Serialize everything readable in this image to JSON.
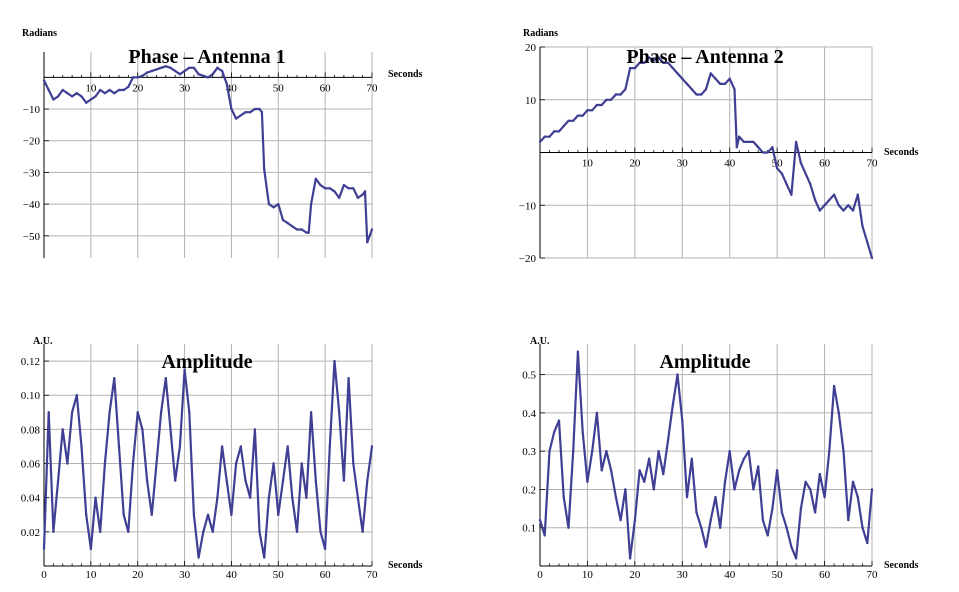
{
  "chart_data": [
    {
      "type": "line",
      "title": "Phase – Antenna 1",
      "xlabel": "Seconds",
      "ylabel": "Radians",
      "xlim": [
        0,
        70
      ],
      "ylim": [
        -57,
        8
      ],
      "x_ticks": [
        10,
        20,
        30,
        40,
        50,
        60,
        70
      ],
      "y_ticks": [
        -10,
        -20,
        -30,
        -40,
        -50
      ],
      "x_tick_labels": [
        "10",
        "20",
        "30",
        "40",
        "50",
        "60",
        "70"
      ],
      "y_tick_labels": [
        "−10",
        "−20",
        "−30",
        "−40",
        "−50"
      ],
      "grid": true,
      "color": "#3f3f94",
      "x": [
        0,
        1,
        2,
        3,
        4,
        5,
        6,
        7,
        8,
        9,
        10,
        11,
        12,
        13,
        14,
        15,
        16,
        17,
        18,
        19,
        20,
        21,
        22,
        23,
        24,
        25,
        26,
        27,
        28,
        29,
        30,
        31,
        32,
        33,
        34,
        35,
        36,
        37,
        38,
        39,
        40,
        41,
        42,
        43,
        44,
        45,
        46,
        46.5,
        47,
        48,
        49,
        50,
        51,
        52,
        53,
        54,
        55,
        56,
        56.5,
        57,
        58,
        59,
        60,
        61,
        62,
        63,
        64,
        65,
        66,
        67,
        68,
        68.5,
        69,
        70
      ],
      "y": [
        -1,
        -4,
        -7,
        -6,
        -4,
        -5,
        -6,
        -5,
        -6,
        -8,
        -7,
        -6,
        -4,
        -5,
        -4,
        -5,
        -4,
        -4,
        -3,
        0,
        0,
        0.5,
        1.5,
        2,
        2.5,
        3,
        3.5,
        3,
        2,
        1,
        2,
        3,
        3,
        1,
        0.5,
        0,
        1,
        3,
        2,
        -2,
        -10,
        -13,
        -12,
        -11,
        -11,
        -10,
        -10,
        -11,
        -29,
        -40,
        -41,
        -40,
        -45,
        -46,
        -47,
        -48,
        -48,
        -49,
        -49,
        -40,
        -32,
        -34,
        -35,
        -35,
        -36,
        -38,
        -34,
        -35,
        -35,
        -38,
        -37,
        -36,
        -52,
        -48
      ]
    },
    {
      "type": "line",
      "title": "Phase – Antenna 2",
      "xlabel": "Seconds",
      "ylabel": "Radians",
      "xlim": [
        0,
        70
      ],
      "ylim": [
        -20,
        20
      ],
      "x_ticks": [
        10,
        20,
        30,
        40,
        50,
        60,
        70
      ],
      "y_ticks": [
        20,
        10,
        -10,
        -20
      ],
      "x_tick_labels": [
        "10",
        "20",
        "30",
        "40",
        "50",
        "60",
        "70"
      ],
      "y_tick_labels": [
        "20",
        "10",
        "−10",
        "−20"
      ],
      "grid": true,
      "color": "#3f3f94",
      "x": [
        0,
        1,
        2,
        3,
        4,
        5,
        6,
        7,
        8,
        9,
        10,
        11,
        12,
        13,
        14,
        15,
        16,
        17,
        18,
        19,
        20,
        21,
        22,
        23,
        24,
        25,
        26,
        27,
        28,
        29,
        30,
        31,
        32,
        33,
        34,
        35,
        36,
        37,
        38,
        39,
        40,
        41,
        41.5,
        42,
        43,
        44,
        45,
        46,
        47,
        48,
        49,
        50,
        51,
        52,
        53,
        54,
        55,
        56,
        57,
        58,
        59,
        60,
        61,
        62,
        63,
        64,
        65,
        66,
        67,
        68,
        69,
        70
      ],
      "y": [
        2,
        3,
        3,
        4,
        4,
        5,
        6,
        6,
        7,
        7,
        8,
        8,
        9,
        9,
        10,
        10,
        11,
        11,
        12,
        16,
        16,
        17,
        17,
        18,
        17.5,
        18,
        17,
        17,
        16,
        15,
        14,
        13,
        12,
        11,
        11,
        12,
        15,
        14,
        13,
        13,
        14,
        12,
        1,
        3,
        2,
        2,
        2,
        1,
        0,
        0,
        1,
        -3,
        -4,
        -6,
        -8,
        2,
        -2,
        -4,
        -6,
        -9,
        -11,
        -10,
        -9,
        -8,
        -10,
        -11,
        -10,
        -11,
        -8,
        -14,
        -17,
        -20
      ]
    },
    {
      "type": "line",
      "title": "Amplitude",
      "xlabel": "Seconds",
      "ylabel": "A.U.",
      "xlim": [
        0,
        70
      ],
      "ylim": [
        0,
        0.13
      ],
      "x_ticks": [
        0,
        10,
        20,
        30,
        40,
        50,
        60,
        70
      ],
      "y_ticks": [
        0.02,
        0.04,
        0.06,
        0.08,
        0.1,
        0.12
      ],
      "x_tick_labels": [
        "0",
        "10",
        "20",
        "30",
        "40",
        "50",
        "60",
        "70"
      ],
      "y_tick_labels": [
        "0.02",
        "0.04",
        "0.06",
        "0.08",
        "0.10",
        "0.12"
      ],
      "grid": true,
      "color": "#3f3f94",
      "x": [
        0,
        1,
        2,
        3,
        4,
        5,
        6,
        7,
        8,
        9,
        10,
        11,
        12,
        13,
        14,
        15,
        16,
        17,
        18,
        19,
        20,
        21,
        22,
        23,
        24,
        25,
        26,
        27,
        28,
        29,
        30,
        31,
        32,
        33,
        34,
        35,
        36,
        37,
        38,
        39,
        40,
        41,
        42,
        43,
        44,
        45,
        46,
        47,
        48,
        49,
        50,
        51,
        52,
        53,
        54,
        55,
        56,
        57,
        58,
        59,
        60,
        61,
        62,
        63,
        64,
        65,
        66,
        67,
        68,
        69,
        70
      ],
      "y": [
        0.01,
        0.09,
        0.02,
        0.05,
        0.08,
        0.06,
        0.09,
        0.1,
        0.07,
        0.03,
        0.01,
        0.04,
        0.02,
        0.06,
        0.09,
        0.11,
        0.07,
        0.03,
        0.02,
        0.06,
        0.09,
        0.08,
        0.05,
        0.03,
        0.06,
        0.09,
        0.11,
        0.08,
        0.05,
        0.07,
        0.115,
        0.09,
        0.03,
        0.005,
        0.02,
        0.03,
        0.02,
        0.04,
        0.07,
        0.05,
        0.03,
        0.06,
        0.07,
        0.05,
        0.04,
        0.08,
        0.02,
        0.005,
        0.04,
        0.06,
        0.03,
        0.05,
        0.07,
        0.04,
        0.02,
        0.06,
        0.04,
        0.09,
        0.05,
        0.02,
        0.01,
        0.07,
        0.12,
        0.09,
        0.05,
        0.11,
        0.06,
        0.04,
        0.02,
        0.05,
        0.07
      ]
    },
    {
      "type": "line",
      "title": "Amplitude",
      "xlabel": "Seconds",
      "ylabel": "A.U.",
      "xlim": [
        0,
        70
      ],
      "ylim": [
        0,
        0.58
      ],
      "x_ticks": [
        0,
        10,
        20,
        30,
        40,
        50,
        60,
        70
      ],
      "y_ticks": [
        0.1,
        0.2,
        0.3,
        0.4,
        0.5
      ],
      "x_tick_labels": [
        "0",
        "10",
        "20",
        "30",
        "40",
        "50",
        "60",
        "70"
      ],
      "y_tick_labels": [
        "0.1",
        "0.2",
        "0.3",
        "0.4",
        "0.5"
      ],
      "grid": true,
      "color": "#3f3f94",
      "x": [
        0,
        1,
        2,
        3,
        4,
        5,
        6,
        7,
        8,
        9,
        10,
        11,
        12,
        13,
        14,
        15,
        16,
        17,
        18,
        19,
        20,
        21,
        22,
        23,
        24,
        25,
        26,
        27,
        28,
        29,
        30,
        31,
        32,
        33,
        34,
        35,
        36,
        37,
        38,
        39,
        40,
        41,
        42,
        43,
        44,
        45,
        46,
        47,
        48,
        49,
        50,
        51,
        52,
        53,
        54,
        55,
        56,
        57,
        58,
        59,
        60,
        61,
        62,
        63,
        64,
        65,
        66,
        67,
        68,
        69,
        70
      ],
      "y": [
        0.12,
        0.08,
        0.3,
        0.35,
        0.38,
        0.18,
        0.1,
        0.3,
        0.56,
        0.35,
        0.22,
        0.3,
        0.4,
        0.25,
        0.3,
        0.25,
        0.18,
        0.12,
        0.2,
        0.02,
        0.12,
        0.25,
        0.22,
        0.28,
        0.2,
        0.3,
        0.24,
        0.33,
        0.42,
        0.5,
        0.38,
        0.18,
        0.28,
        0.14,
        0.1,
        0.05,
        0.12,
        0.18,
        0.1,
        0.22,
        0.3,
        0.2,
        0.25,
        0.28,
        0.3,
        0.2,
        0.26,
        0.12,
        0.08,
        0.15,
        0.25,
        0.14,
        0.1,
        0.05,
        0.02,
        0.15,
        0.22,
        0.2,
        0.14,
        0.24,
        0.18,
        0.3,
        0.47,
        0.4,
        0.3,
        0.12,
        0.22,
        0.18,
        0.1,
        0.06,
        0.2
      ]
    }
  ]
}
